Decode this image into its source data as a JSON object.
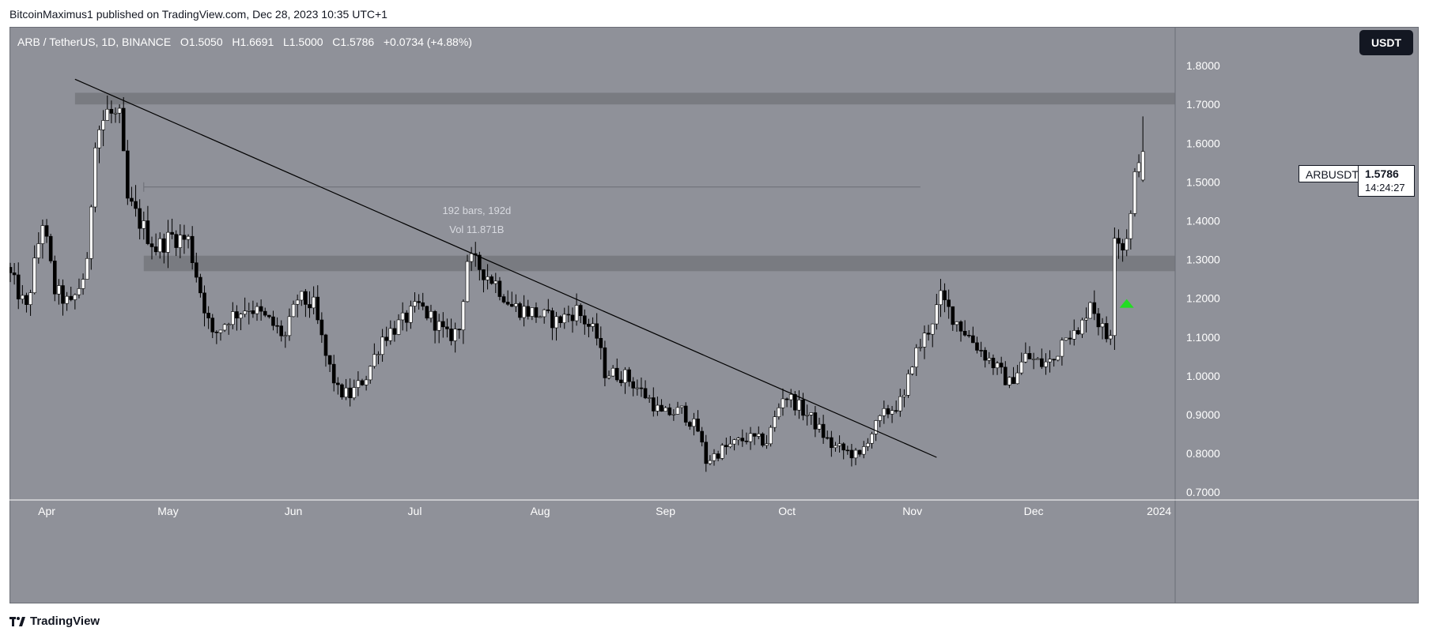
{
  "publisher": "BitcoinMaximus1 published on TradingView.com, Dec 28, 2023 10:35 UTC+1",
  "legend": {
    "symbol": "ARB / TetherUS, 1D, BINANCE",
    "open_key": "O",
    "open": "1.5050",
    "high_key": "H",
    "high": "1.6691",
    "low_key": "L",
    "low": "1.5000",
    "close_key": "C",
    "close": "1.5786",
    "change": "+0.0734 (+4.88%)"
  },
  "currency_button": "USDT",
  "price_label": {
    "symbol": "ARBUSDT",
    "price": "1.5786",
    "countdown": "14:24:27"
  },
  "measure": {
    "bars": "192 bars, 192d",
    "volume": "Vol 11.871B"
  },
  "footer_brand": "TradingView",
  "colors": {
    "background": "#8f9199",
    "zone": "#75777d",
    "candle_up": "#ffffff",
    "candle_down": "#000000",
    "arrow": "#22dd22",
    "trendline": "#000000"
  },
  "chart_data": {
    "type": "candlestick",
    "pair": "ARB / TetherUS",
    "timeframe": "1D",
    "exchange": "BINANCE",
    "ylim": [
      0.68,
      1.9
    ],
    "y_ticks": [
      0.7,
      0.8,
      0.9,
      1.0,
      1.1,
      1.2,
      1.3,
      1.4,
      1.5,
      1.6,
      1.7,
      1.8
    ],
    "y_tick_labels": [
      "0.7000",
      "0.8000",
      "0.9000",
      "1.0000",
      "1.1000",
      "1.2000",
      "1.3000",
      "1.4000",
      "1.5000",
      "1.6000",
      "1.7000",
      "1.8000"
    ],
    "x_labels": [
      {
        "label": "Apr",
        "date": "2023-04-01"
      },
      {
        "label": "May",
        "date": "2023-05-01"
      },
      {
        "label": "Jun",
        "date": "2023-06-01"
      },
      {
        "label": "Jul",
        "date": "2023-07-01"
      },
      {
        "label": "Aug",
        "date": "2023-08-01"
      },
      {
        "label": "Sep",
        "date": "2023-09-01"
      },
      {
        "label": "Oct",
        "date": "2023-10-01"
      },
      {
        "label": "Nov",
        "date": "2023-11-01"
      },
      {
        "label": "Dec",
        "date": "2023-12-01"
      },
      {
        "label": "2024",
        "date": "2024-01-01"
      }
    ],
    "start_date": "2023-03-23",
    "end_date": "2023-12-28",
    "anchors": [
      {
        "date": "2023-03-23",
        "price": 1.28
      },
      {
        "date": "2023-03-28",
        "price": 1.17
      },
      {
        "date": "2023-04-01",
        "price": 1.4
      },
      {
        "date": "2023-04-04",
        "price": 1.22
      },
      {
        "date": "2023-04-08",
        "price": 1.18
      },
      {
        "date": "2023-04-12",
        "price": 1.28
      },
      {
        "date": "2023-04-14",
        "price": 1.62
      },
      {
        "date": "2023-04-17",
        "price": 1.68
      },
      {
        "date": "2023-04-20",
        "price": 1.66
      },
      {
        "date": "2023-04-22",
        "price": 1.45
      },
      {
        "date": "2023-04-26",
        "price": 1.38
      },
      {
        "date": "2023-04-29",
        "price": 1.33
      },
      {
        "date": "2023-05-03",
        "price": 1.36
      },
      {
        "date": "2023-05-07",
        "price": 1.35
      },
      {
        "date": "2023-05-10",
        "price": 1.22
      },
      {
        "date": "2023-05-13",
        "price": 1.1
      },
      {
        "date": "2023-05-17",
        "price": 1.15
      },
      {
        "date": "2023-05-22",
        "price": 1.18
      },
      {
        "date": "2023-05-27",
        "price": 1.14
      },
      {
        "date": "2023-05-31",
        "price": 1.1
      },
      {
        "date": "2023-06-03",
        "price": 1.2
      },
      {
        "date": "2023-06-07",
        "price": 1.18
      },
      {
        "date": "2023-06-10",
        "price": 1.05
      },
      {
        "date": "2023-06-13",
        "price": 0.96
      },
      {
        "date": "2023-06-16",
        "price": 0.95
      },
      {
        "date": "2023-06-20",
        "price": 1.0
      },
      {
        "date": "2023-06-24",
        "price": 1.1
      },
      {
        "date": "2023-06-29",
        "price": 1.14
      },
      {
        "date": "2023-07-03",
        "price": 1.18
      },
      {
        "date": "2023-07-07",
        "price": 1.14
      },
      {
        "date": "2023-07-10",
        "price": 1.1
      },
      {
        "date": "2023-07-13",
        "price": 1.12
      },
      {
        "date": "2023-07-15",
        "price": 1.3
      },
      {
        "date": "2023-07-18",
        "price": 1.28
      },
      {
        "date": "2023-07-22",
        "price": 1.24
      },
      {
        "date": "2023-07-26",
        "price": 1.18
      },
      {
        "date": "2023-08-01",
        "price": 1.16
      },
      {
        "date": "2023-08-06",
        "price": 1.14
      },
      {
        "date": "2023-08-11",
        "price": 1.17
      },
      {
        "date": "2023-08-16",
        "price": 1.1
      },
      {
        "date": "2023-08-18",
        "price": 1.01
      },
      {
        "date": "2023-08-23",
        "price": 1.0
      },
      {
        "date": "2023-08-29",
        "price": 0.94
      },
      {
        "date": "2023-09-01",
        "price": 0.9
      },
      {
        "date": "2023-09-06",
        "price": 0.91
      },
      {
        "date": "2023-09-10",
        "price": 0.86
      },
      {
        "date": "2023-09-12",
        "price": 0.78
      },
      {
        "date": "2023-09-16",
        "price": 0.81
      },
      {
        "date": "2023-09-22",
        "price": 0.84
      },
      {
        "date": "2023-09-27",
        "price": 0.83
      },
      {
        "date": "2023-10-01",
        "price": 0.95
      },
      {
        "date": "2023-10-03",
        "price": 0.94
      },
      {
        "date": "2023-10-08",
        "price": 0.89
      },
      {
        "date": "2023-10-13",
        "price": 0.82
      },
      {
        "date": "2023-10-18",
        "price": 0.8
      },
      {
        "date": "2023-10-20",
        "price": 0.79
      },
      {
        "date": "2023-10-22",
        "price": 0.84
      },
      {
        "date": "2023-10-26",
        "price": 0.9
      },
      {
        "date": "2023-10-31",
        "price": 0.94
      },
      {
        "date": "2023-11-02",
        "price": 1.04
      },
      {
        "date": "2023-11-06",
        "price": 1.12
      },
      {
        "date": "2023-11-09",
        "price": 1.2
      },
      {
        "date": "2023-11-13",
        "price": 1.14
      },
      {
        "date": "2023-11-17",
        "price": 1.09
      },
      {
        "date": "2023-11-22",
        "price": 1.03
      },
      {
        "date": "2023-11-26",
        "price": 0.98
      },
      {
        "date": "2023-11-30",
        "price": 1.05
      },
      {
        "date": "2023-12-04",
        "price": 1.03
      },
      {
        "date": "2023-12-07",
        "price": 1.04
      },
      {
        "date": "2023-12-10",
        "price": 1.12
      },
      {
        "date": "2023-12-13",
        "price": 1.1
      },
      {
        "date": "2023-12-16",
        "price": 1.2
      },
      {
        "date": "2023-12-18",
        "price": 1.14
      },
      {
        "date": "2023-12-20",
        "price": 1.1
      },
      {
        "date": "2023-12-21",
        "price": 1.12
      },
      {
        "date": "2023-12-22",
        "price": 1.38
      },
      {
        "date": "2023-12-24",
        "price": 1.33
      },
      {
        "date": "2023-12-26",
        "price": 1.41
      },
      {
        "date": "2023-12-27",
        "price": 1.505
      },
      {
        "date": "2023-12-28",
        "price": 1.5786
      }
    ],
    "last_candle": {
      "date": "2023-12-28",
      "open": 1.505,
      "high": 1.6691,
      "low": 1.5,
      "close": 1.5786
    },
    "zones": [
      {
        "from_date": "2023-04-08",
        "low": 1.7,
        "high": 1.73
      },
      {
        "from_date": "2023-04-25",
        "low": 1.27,
        "high": 1.31
      }
    ],
    "trendline": {
      "from": {
        "date": "2023-04-08",
        "price": 1.765
      },
      "to": {
        "date": "2023-11-07",
        "price": 0.79
      }
    },
    "measure_line": {
      "from_date": "2023-04-25",
      "to_date": "2023-11-03",
      "price": 1.487
    },
    "signal_arrow": {
      "date": "2023-12-24",
      "price": 1.19
    }
  }
}
